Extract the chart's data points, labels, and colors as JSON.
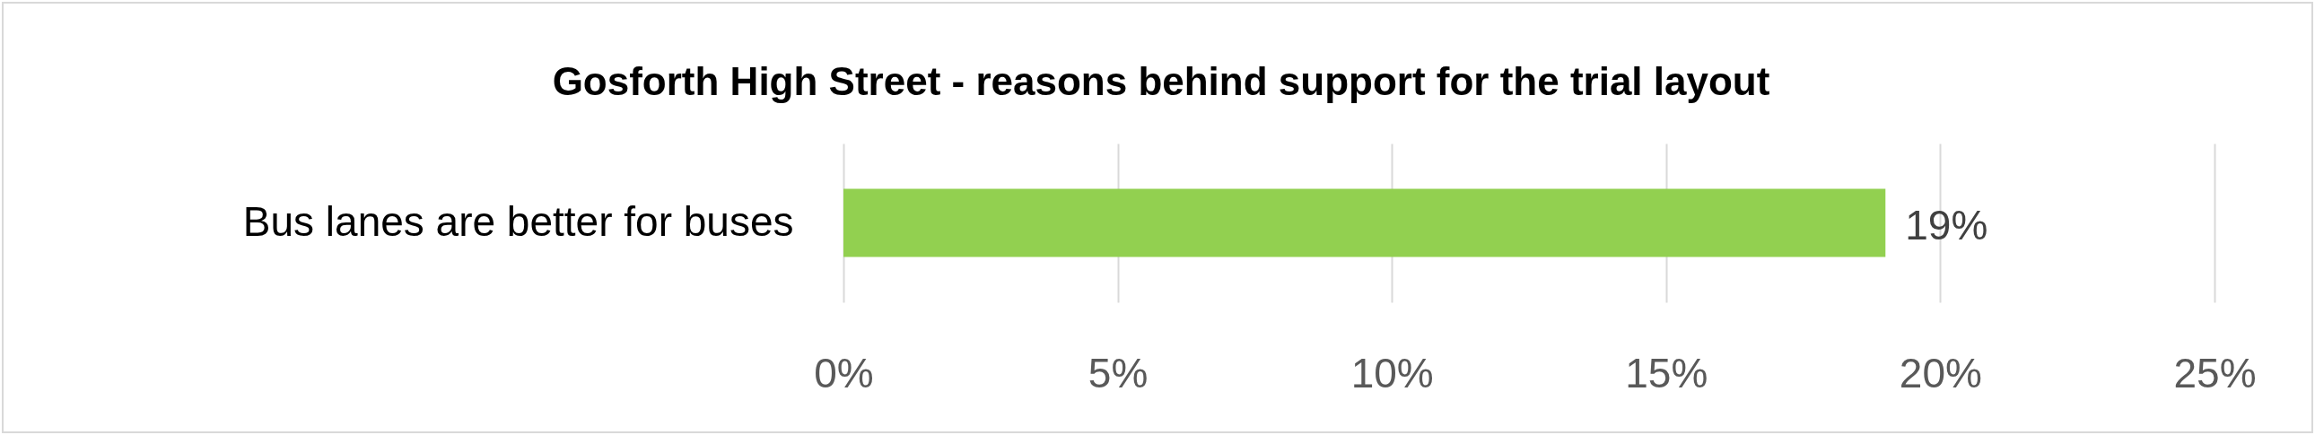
{
  "chart_data": {
    "type": "bar",
    "orientation": "horizontal",
    "title": "Gosforth High Street - reasons behind support for the trial layout",
    "categories": [
      "Bus lanes are better for buses"
    ],
    "series": [
      {
        "color": "#92d050",
        "values": [
          19
        ]
      }
    ],
    "value_labels": [
      "19%"
    ],
    "xlim": [
      0,
      25
    ],
    "xticks": [
      {
        "value": 0,
        "label": "0%"
      },
      {
        "value": 5,
        "label": "5%"
      },
      {
        "value": 10,
        "label": "10%"
      },
      {
        "value": 15,
        "label": "15%"
      },
      {
        "value": 20,
        "label": "20%"
      },
      {
        "value": 25,
        "label": "25%"
      }
    ],
    "grid": "x"
  }
}
